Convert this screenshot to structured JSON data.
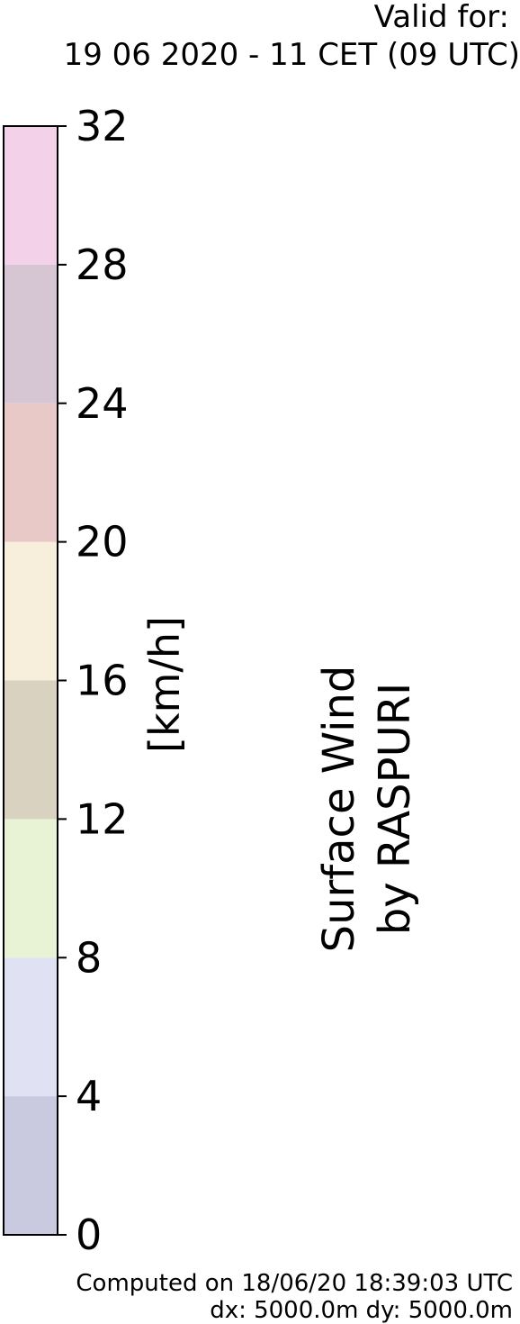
{
  "header": {
    "valid_label": "Valid for:",
    "valid_time": "19 06 2020 - 11 CET (09 UTC)"
  },
  "product": {
    "line1": "Surface Wind",
    "line2": "by RASPURI"
  },
  "footer": {
    "computed": "Computed on 18/06/20 18:39:03 UTC",
    "grid": "dx: 5000.0m dy: 5000.0m"
  },
  "chart_data": {
    "type": "colorbar",
    "unit_label": "[km/h]",
    "vmin": 0,
    "vmax": 32,
    "ticks": [
      0,
      4,
      8,
      12,
      16,
      20,
      24,
      28,
      32
    ],
    "bins": [
      {
        "from": 0,
        "to": 4,
        "color": "#c9c9e0"
      },
      {
        "from": 4,
        "to": 8,
        "color": "#e0e2f4"
      },
      {
        "from": 8,
        "to": 12,
        "color": "#e8f2d5"
      },
      {
        "from": 12,
        "to": 16,
        "color": "#d9d2c0"
      },
      {
        "from": 16,
        "to": 20,
        "color": "#f7efdc"
      },
      {
        "from": 20,
        "to": 24,
        "color": "#e9c8c8"
      },
      {
        "from": 24,
        "to": 28,
        "color": "#d6c5d2"
      },
      {
        "from": 28,
        "to": 32,
        "color": "#f2d1e9"
      }
    ]
  }
}
